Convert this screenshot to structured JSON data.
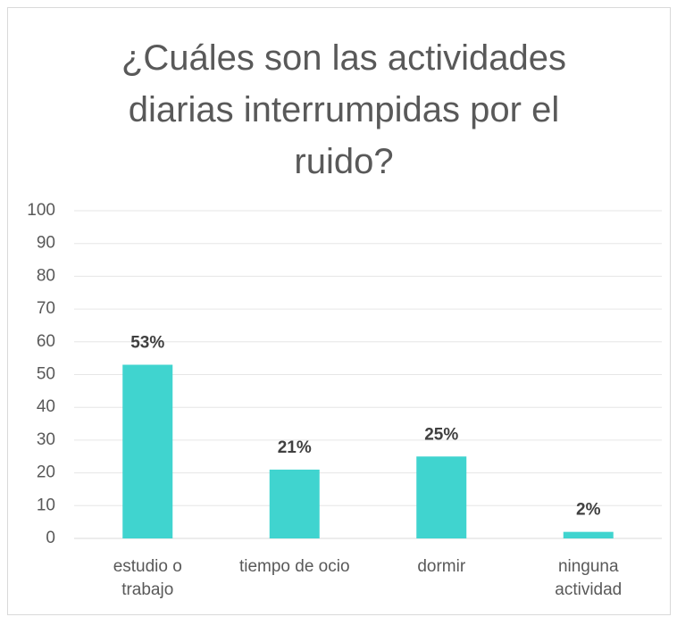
{
  "chart_data": {
    "type": "bar",
    "title": "¿Cuáles son las actividades diarias interrumpidas por el ruido?",
    "categories": [
      "estudio o trabajo",
      "tiempo de ocio",
      "dormir",
      "ninguna actividad"
    ],
    "values": [
      53,
      21,
      25,
      2
    ],
    "value_labels": [
      "53%",
      "21%",
      "25%",
      "2%"
    ],
    "color": "#40d4cf",
    "ylim": [
      0,
      100
    ],
    "yticks": [
      0,
      10,
      20,
      30,
      40,
      50,
      60,
      70,
      80,
      90,
      100
    ],
    "grid": true
  }
}
